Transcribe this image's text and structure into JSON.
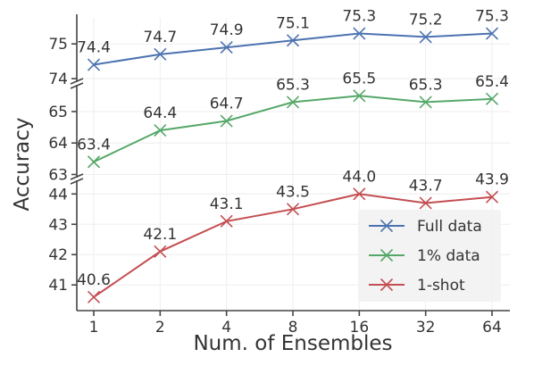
{
  "chart_data": {
    "type": "line",
    "xlabel": "Num. of Ensembles",
    "ylabel": "Accuracy",
    "categories": [
      "1",
      "2",
      "4",
      "8",
      "16",
      "32",
      "64"
    ],
    "broken_y_axis": true,
    "grid": true,
    "legend_position": "bottom-right",
    "panels": [
      {
        "series": "Full data",
        "ylim": [
          73.9,
          75.75
        ],
        "yticks": [
          74,
          75
        ]
      },
      {
        "series": "1% data",
        "ylim": [
          62.9,
          65.85
        ],
        "yticks": [
          63,
          64,
          65
        ]
      },
      {
        "series": "1-shot",
        "ylim": [
          40.3,
          44.45
        ],
        "yticks": [
          41,
          42,
          43,
          44
        ]
      }
    ],
    "series": [
      {
        "name": "Full data",
        "color": "#4c72b0",
        "values": [
          74.4,
          74.7,
          74.9,
          75.1,
          75.3,
          75.2,
          75.3
        ],
        "labels": [
          "74.4",
          "74.7",
          "74.9",
          "75.1",
          "75.3",
          "75.2",
          "75.3"
        ]
      },
      {
        "name": "1% data",
        "color": "#55a868",
        "values": [
          63.4,
          64.4,
          64.7,
          65.3,
          65.5,
          65.3,
          65.4
        ],
        "labels": [
          "63.4",
          "64.4",
          "64.7",
          "65.3",
          "65.5",
          "65.3",
          "65.4"
        ]
      },
      {
        "name": "1-shot",
        "color": "#c44e52",
        "values": [
          40.6,
          42.1,
          43.1,
          43.5,
          44.0,
          43.7,
          43.9
        ],
        "labels": [
          "40.6",
          "42.1",
          "43.1",
          "43.5",
          "44.0",
          "43.7",
          "43.9"
        ]
      }
    ]
  }
}
